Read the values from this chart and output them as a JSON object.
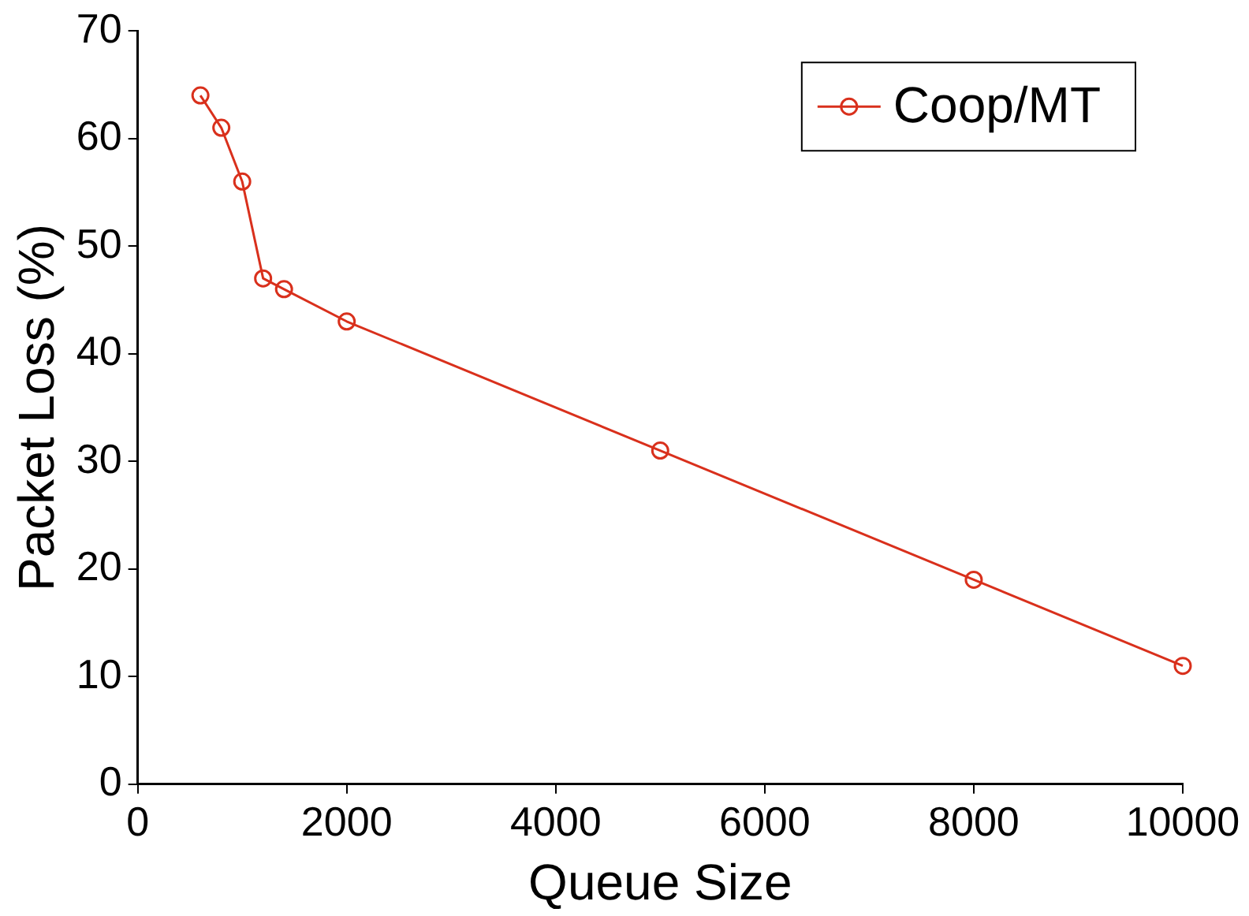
{
  "chart_data": {
    "type": "line",
    "xlabel": "Queue Size",
    "ylabel": "Packet Loss (%)",
    "x": [
      600,
      800,
      1000,
      1200,
      1400,
      2000,
      5000,
      8000,
      10000
    ],
    "series": [
      {
        "name": "Coop/MT",
        "color": "#d9301c",
        "values": [
          64,
          61,
          56,
          47,
          46,
          43,
          31,
          19,
          11
        ]
      }
    ],
    "xlim": [
      0,
      10000
    ],
    "xticks": [
      0,
      2000,
      4000,
      6000,
      8000,
      10000
    ],
    "ylim": [
      0,
      70
    ],
    "yticks": [
      0,
      10,
      20,
      30,
      40,
      50,
      60,
      70
    ],
    "grid": false,
    "legend": "top right",
    "marker": "circle",
    "line_style": "solid"
  }
}
